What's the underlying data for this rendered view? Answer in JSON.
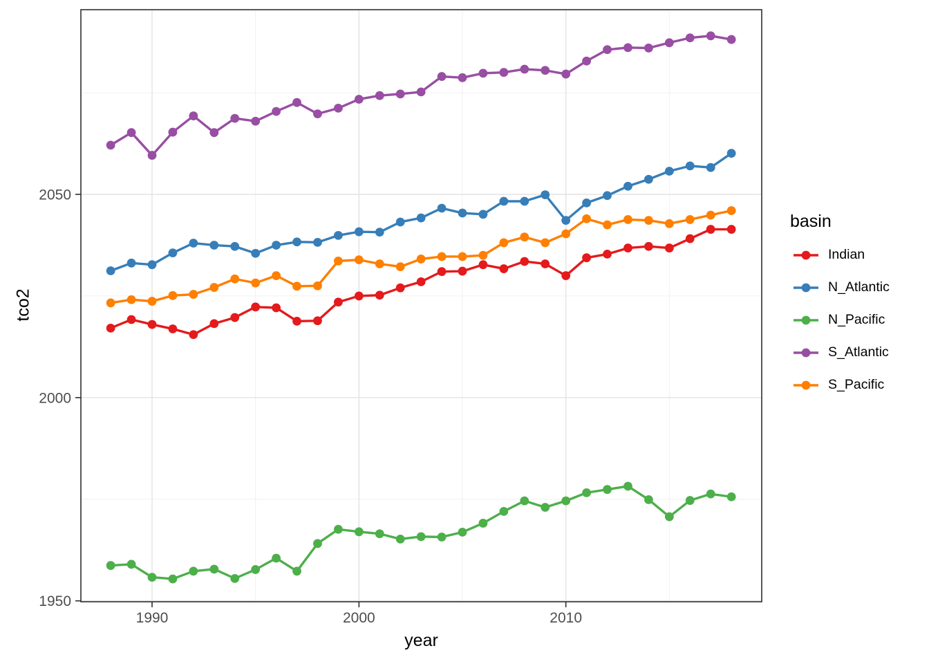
{
  "chart_data": {
    "type": "line",
    "title": "",
    "xlabel": "year",
    "ylabel": "tco2",
    "grid": true,
    "legend": {
      "title": "basin",
      "position": "right"
    },
    "x_ticks": [
      1990,
      2000,
      2010
    ],
    "y_ticks": [
      1950,
      2000,
      2050
    ],
    "x_minor": [
      1995,
      2005,
      2015
    ],
    "y_minor": [
      1975,
      2025,
      2075
    ],
    "xlim": [
      1986.6,
      2019.5
    ],
    "ylim": [
      1948.6,
      2095.4
    ],
    "x": [
      1988,
      1989,
      1990,
      1991,
      1992,
      1993,
      1994,
      1995,
      1996,
      1997,
      1998,
      1999,
      2000,
      2001,
      2002,
      2003,
      2004,
      2005,
      2006,
      2007,
      2008,
      2009,
      2010,
      2011,
      2012,
      2013,
      2014,
      2015,
      2016,
      2017,
      2018
    ],
    "series": [
      {
        "name": "Indian",
        "color": "#E41A1C",
        "values": [
          2017.1,
          2019.2,
          2018.0,
          2016.9,
          2015.5,
          2018.2,
          2019.7,
          2022.3,
          2022.1,
          2018.8,
          2018.9,
          2023.5,
          2025.0,
          2025.2,
          2027.0,
          2028.5,
          2031.0,
          2031.1,
          2032.7,
          2031.7,
          2033.5,
          2032.9,
          2030.0,
          2034.4,
          2035.3,
          2036.8,
          2037.2,
          2036.8,
          2039.1,
          2041.4,
          2041.4
        ]
      },
      {
        "name": "N_Atlantic",
        "color": "#377EB8",
        "values": [
          2031.2,
          2033.1,
          2032.7,
          2035.6,
          2038.0,
          2037.5,
          2037.2,
          2035.5,
          2037.5,
          2038.3,
          2038.2,
          2039.9,
          2040.8,
          2040.7,
          2043.2,
          2044.2,
          2046.6,
          2045.4,
          2045.1,
          2048.3,
          2048.3,
          2049.9,
          2043.6,
          2047.9,
          2049.7,
          2052.0,
          2053.7,
          2055.7,
          2057.0,
          2056.6,
          2060.1
        ]
      },
      {
        "name": "N_Pacific",
        "color": "#4DAF4A",
        "values": [
          1958.7,
          1959.0,
          1955.8,
          1955.4,
          1957.3,
          1957.8,
          1955.5,
          1957.7,
          1960.5,
          1957.3,
          1964.1,
          1967.6,
          1967.0,
          1966.5,
          1965.2,
          1965.8,
          1965.7,
          1966.9,
          1969.1,
          1972.0,
          1974.6,
          1973.0,
          1974.6,
          1976.6,
          1977.4,
          1978.2,
          1974.9,
          1970.7,
          1974.7,
          1976.3,
          1975.6
        ]
      },
      {
        "name": "S_Atlantic",
        "color": "#984EA3",
        "values": [
          2062.1,
          2065.2,
          2059.6,
          2065.3,
          2069.3,
          2065.2,
          2068.7,
          2068.0,
          2070.4,
          2072.6,
          2069.8,
          2071.2,
          2073.4,
          2074.3,
          2074.7,
          2075.2,
          2079.0,
          2078.7,
          2079.8,
          2080.0,
          2080.8,
          2080.5,
          2079.6,
          2082.8,
          2085.6,
          2086.1,
          2086.0,
          2087.3,
          2088.5,
          2089.0,
          2088.1
        ]
      },
      {
        "name": "S_Pacific",
        "color": "#FF7F00",
        "values": [
          2023.3,
          2024.1,
          2023.7,
          2025.1,
          2025.4,
          2027.1,
          2029.2,
          2028.2,
          2030.0,
          2027.4,
          2027.5,
          2033.6,
          2033.9,
          2032.9,
          2032.2,
          2034.1,
          2034.7,
          2034.7,
          2035.0,
          2038.1,
          2039.5,
          2038.1,
          2040.3,
          2044.0,
          2042.5,
          2043.8,
          2043.6,
          2042.8,
          2043.8,
          2044.9,
          2046.0
        ]
      }
    ]
  }
}
